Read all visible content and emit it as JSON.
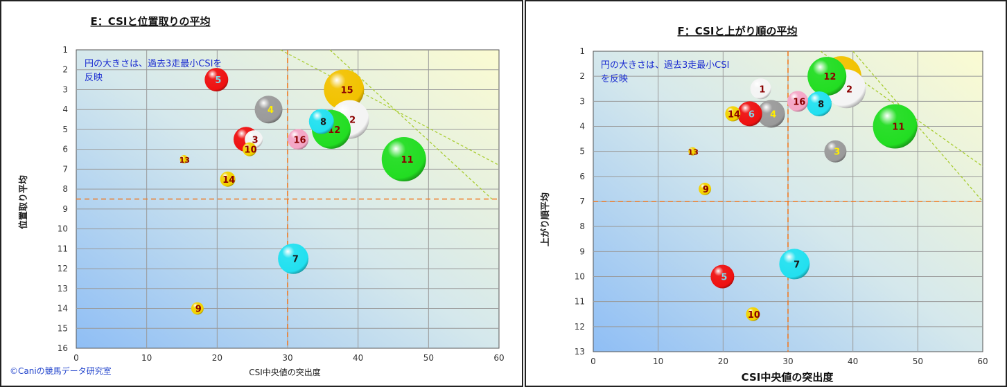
{
  "chart_data": [
    {
      "type": "scatter",
      "title": "E：CSIと位置取りの平均",
      "note": "円の大きさは、過去3走最小CSIを反映",
      "note_lines": [
        "円の大きさは、過去3走最小CSIを",
        "反映"
      ],
      "xlabel": "CSI中央値の突出度",
      "ylabel": "位置取り平均",
      "xlim": [
        0,
        60
      ],
      "ylim": [
        1,
        16
      ],
      "y_reversed": true,
      "xticks": [
        "0",
        "10",
        "20",
        "30",
        "40",
        "50",
        "60"
      ],
      "yticks": [
        "1",
        "2",
        "3",
        "4",
        "5",
        "6",
        "7",
        "8",
        "9",
        "10",
        "11",
        "12",
        "13",
        "14",
        "15",
        "16"
      ],
      "grid": true,
      "reference_lines": {
        "vertical_x": 30,
        "horizontal_y": 8.5
      },
      "diagonal_lines": [
        {
          "from": [
            29,
            1
          ],
          "to": [
            60,
            6.8
          ]
        },
        {
          "from": [
            36,
            1
          ],
          "to": [
            59,
            8.5
          ]
        }
      ],
      "copyright": "©Caniの競馬データ研究室",
      "points": [
        {
          "label": "2",
          "x": 38.8,
          "y": 4.5,
          "size": 28,
          "color": "#f4f4f4",
          "label_color": "#8b0000"
        },
        {
          "label": "15",
          "x": 38.0,
          "y": 3.0,
          "size": 29,
          "color": "#f2c200",
          "label_color": "#8b0000"
        },
        {
          "label": "8",
          "x": 34.8,
          "y": 4.6,
          "size": 18,
          "color": "#22e0f0",
          "label_color": "#1a1a1a"
        },
        {
          "label": "12",
          "x": 36.2,
          "y": 5.0,
          "size": 28,
          "color": "#22dd22",
          "label_color": "#8b0000"
        },
        {
          "label": "11",
          "x": 46.5,
          "y": 6.5,
          "size": 32,
          "color": "#22dd22",
          "label_color": "#8b0000"
        },
        {
          "label": "5",
          "x": 19.9,
          "y": 2.5,
          "size": 17,
          "color": "#ee1111",
          "label_color": "#7fd8e8"
        },
        {
          "label": "4",
          "x": 27.3,
          "y": 4.0,
          "size": 20,
          "color": "#9a9a9a",
          "label_color": "#ffee00"
        },
        {
          "label": "3",
          "x": 25.2,
          "y": 5.5,
          "size": 13,
          "color": "#f4f4f4",
          "label_color": "#8b0000"
        },
        {
          "label": "6",
          "x": 24.1,
          "y": 5.5,
          "size": 18,
          "color": "#ee1111",
          "label_color": "#7fd8e8"
        },
        {
          "label": "10",
          "x": 24.6,
          "y": 6.0,
          "size": 10,
          "color": "#f2d200",
          "label_color": "#8b0000"
        },
        {
          "label": "16",
          "x": 31.5,
          "y": 5.5,
          "size": 15,
          "color": "#f4a6c6",
          "label_color": "#8b0000"
        },
        {
          "label": "13",
          "x": 15.3,
          "y": 6.5,
          "size": 6,
          "color": "#f2d200",
          "label_color": "#8b0000"
        },
        {
          "label": "14",
          "x": 21.5,
          "y": 7.5,
          "size": 11,
          "color": "#f2d200",
          "label_color": "#8b0000"
        },
        {
          "label": "7",
          "x": 30.8,
          "y": 11.5,
          "size": 22,
          "color": "#22e0f0",
          "label_color": "#1a1a1a"
        },
        {
          "label": "9",
          "x": 17.2,
          "y": 14.0,
          "size": 9,
          "color": "#f2d200",
          "label_color": "#8b0000"
        }
      ]
    },
    {
      "type": "scatter",
      "title": "F：CSIと上がり順の平均",
      "note": "円の大きさは、過去3走最小CSIを反映",
      "note_lines": [
        "円の大きさは、過去3走最小CSI",
        "を反映"
      ],
      "xlabel": "CSI中央値の突出度",
      "ylabel": "上がり順平均",
      "xlim": [
        0,
        60
      ],
      "ylim": [
        1,
        13
      ],
      "y_reversed": true,
      "xticks": [
        "0",
        "10",
        "20",
        "30",
        "40",
        "50",
        "60"
      ],
      "yticks": [
        "1",
        "2",
        "3",
        "4",
        "5",
        "6",
        "7",
        "8",
        "9",
        "10",
        "11",
        "12",
        "13"
      ],
      "grid": true,
      "reference_lines": {
        "vertical_x": 30,
        "horizontal_y": 7
      },
      "diagonal_lines": [
        {
          "from": [
            35,
            1
          ],
          "to": [
            60,
            5.6
          ]
        },
        {
          "from": [
            40,
            1
          ],
          "to": [
            60,
            7.0
          ]
        }
      ],
      "points": [
        {
          "label": "2",
          "x": 39.0,
          "y": 2.5,
          "size": 28,
          "color": "#f4f4f4",
          "label_color": "#8b0000"
        },
        {
          "label": "12",
          "x": 36.0,
          "y": 2.0,
          "size": 28,
          "color": "#22dd22",
          "label_color": "#8b0000"
        },
        {
          "label": "15",
          "x": 38.2,
          "y": 2.0,
          "size": 29,
          "color": "#f2c200",
          "label_color": "#8b0000"
        },
        {
          "label": "8",
          "x": 34.8,
          "y": 3.1,
          "size": 18,
          "color": "#22e0f0",
          "label_color": "#1a1a1a"
        },
        {
          "label": "16",
          "x": 31.5,
          "y": 3.0,
          "size": 15,
          "color": "#f4a6c6",
          "label_color": "#8b0000"
        },
        {
          "label": "1",
          "x": 25.8,
          "y": 2.5,
          "size": 15,
          "color": "#f4f4f4",
          "label_color": "#8b0000"
        },
        {
          "label": "4",
          "x": 27.4,
          "y": 3.5,
          "size": 20,
          "color": "#9a9a9a",
          "label_color": "#ffee00"
        },
        {
          "label": "6",
          "x": 24.1,
          "y": 3.5,
          "size": 18,
          "color": "#ee1111",
          "label_color": "#7fd8e8"
        },
        {
          "label": "14",
          "x": 21.5,
          "y": 3.5,
          "size": 11,
          "color": "#f2d200",
          "label_color": "#8b0000"
        },
        {
          "label": "11",
          "x": 46.5,
          "y": 4.0,
          "size": 32,
          "color": "#22dd22",
          "label_color": "#8b0000"
        },
        {
          "label": "3",
          "x": 37.3,
          "y": 5.0,
          "size": 16,
          "color": "#9a9a9a",
          "label_color": "#ffee00"
        },
        {
          "label": "13",
          "x": 15.3,
          "y": 5.0,
          "size": 6,
          "color": "#f2d200",
          "label_color": "#8b0000"
        },
        {
          "label": "9",
          "x": 17.2,
          "y": 6.5,
          "size": 9,
          "color": "#f2d200",
          "label_color": "#8b0000"
        },
        {
          "label": "7",
          "x": 31.0,
          "y": 9.5,
          "size": 22,
          "color": "#22e0f0",
          "label_color": "#1a1a1a"
        },
        {
          "label": "5",
          "x": 19.9,
          "y": 10.0,
          "size": 17,
          "color": "#ee1111",
          "label_color": "#7fd8e8"
        },
        {
          "label": "10",
          "x": 24.6,
          "y": 11.5,
          "size": 10,
          "color": "#f2d200",
          "label_color": "#8b0000"
        }
      ]
    }
  ]
}
